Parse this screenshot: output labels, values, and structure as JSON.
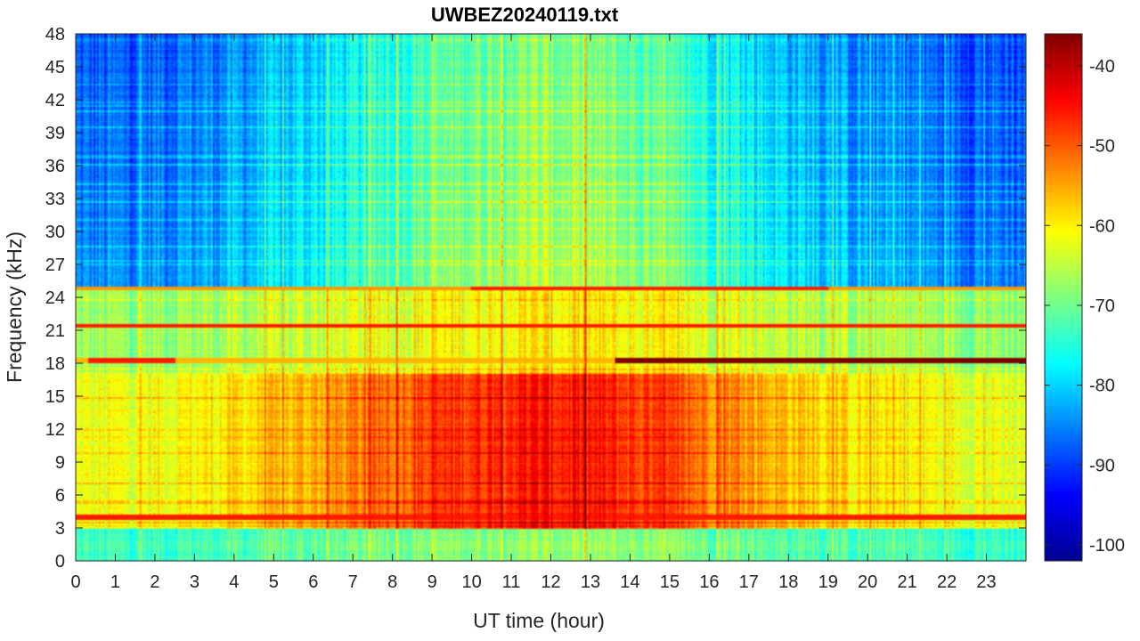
{
  "chart_data": {
    "type": "heatmap",
    "title": "UWBEZ20240119.txt",
    "xlabel": "UT time (hour)",
    "ylabel": "Frequency (kHz)",
    "xlim": [
      0,
      24
    ],
    "ylim": [
      0,
      48
    ],
    "xticks": [
      "0",
      "1",
      "2",
      "3",
      "4",
      "5",
      "6",
      "7",
      "8",
      "9",
      "10",
      "11",
      "12",
      "13",
      "14",
      "15",
      "16",
      "17",
      "18",
      "19",
      "20",
      "21",
      "22",
      "23"
    ],
    "yticks": [
      "0",
      "3",
      "6",
      "9",
      "12",
      "15",
      "18",
      "21",
      "24",
      "27",
      "30",
      "33",
      "36",
      "39",
      "42",
      "45",
      "48"
    ],
    "colorbar": {
      "colormap": "jet",
      "clim": [
        -102,
        -36
      ],
      "ticks": [
        "-40",
        "-50",
        "-60",
        "-70",
        "-80",
        "-90",
        "-100"
      ]
    },
    "grid": false,
    "features": {
      "strong_lines_khz": [
        4.0,
        18.2,
        21.4,
        24.8
      ],
      "intense_band_khz": [
        3,
        17
      ],
      "peak_activity_hours": [
        9,
        14.5
      ]
    }
  }
}
